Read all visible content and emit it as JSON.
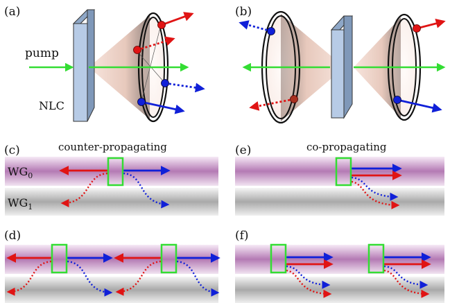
{
  "panels": {
    "a": {
      "label": "(a)",
      "pump_label": "pump",
      "crystal_label": "NLC"
    },
    "b": {
      "label": "(b)"
    },
    "c": {
      "label": "(c)",
      "title": "counter-propagating",
      "wg0_main": "WG",
      "wg0_sub": "0",
      "wg1_main": "WG",
      "wg1_sub": "1"
    },
    "d": {
      "label": "(d)"
    },
    "e": {
      "label": "(e)",
      "title": "co-propagating"
    },
    "f": {
      "label": "(f)"
    }
  },
  "colors": {
    "red": "#e01414",
    "blue": "#1020d8",
    "green": "#33dd33",
    "crystal_face": "#b7cbe6",
    "crystal_side": "#8ea7c7",
    "waveguide_top": "#b97fb9",
    "waveguide_bottom": "#a8a8a8"
  }
}
